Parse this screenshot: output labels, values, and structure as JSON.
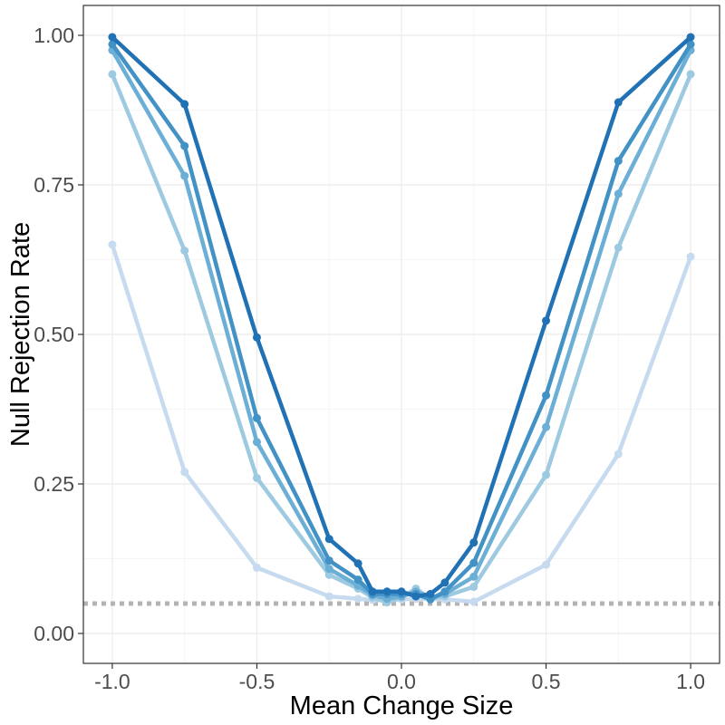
{
  "chart_data": {
    "type": "line",
    "title": "",
    "xlabel": "Mean Change Size",
    "ylabel": "Null Rejection Rate",
    "xlim": [
      -1.1,
      1.1
    ],
    "ylim": [
      -0.05,
      1.05
    ],
    "grid": true,
    "legend": "none",
    "x_ticks": [
      -1.0,
      -0.5,
      0.0,
      0.5,
      1.0
    ],
    "x_tick_labels": [
      "-1.0",
      "-0.5",
      "0.0",
      "0.5",
      "1.0"
    ],
    "y_ticks": [
      0.0,
      0.25,
      0.5,
      0.75,
      1.0
    ],
    "y_tick_labels": [
      "0.00",
      "0.25",
      "0.50",
      "0.75",
      "1.00"
    ],
    "reference_line": {
      "y": 0.05,
      "style": "dotted",
      "color": "#b3b3b3"
    },
    "x": [
      -1.0,
      -0.75,
      -0.5,
      -0.25,
      -0.15,
      -0.1,
      -0.05,
      0.0,
      0.05,
      0.1,
      0.15,
      0.25,
      0.5,
      0.75,
      1.0
    ],
    "series": [
      {
        "name": "series-1",
        "color": "#c6dbef",
        "values": [
          0.65,
          0.27,
          0.11,
          0.062,
          0.058,
          0.056,
          0.055,
          0.057,
          0.058,
          0.058,
          0.057,
          0.053,
          0.115,
          0.3,
          0.63
        ]
      },
      {
        "name": "series-2",
        "color": "#9ecae1",
        "values": [
          0.935,
          0.64,
          0.26,
          0.098,
          0.075,
          0.06,
          0.052,
          0.06,
          0.075,
          0.058,
          0.062,
          0.078,
          0.265,
          0.645,
          0.935
        ]
      },
      {
        "name": "series-3",
        "color": "#6baed6",
        "values": [
          0.975,
          0.765,
          0.32,
          0.108,
          0.08,
          0.064,
          0.058,
          0.062,
          0.07,
          0.06,
          0.066,
          0.095,
          0.345,
          0.735,
          0.975
        ]
      },
      {
        "name": "series-4",
        "color": "#4292c6",
        "values": [
          0.985,
          0.815,
          0.36,
          0.122,
          0.09,
          0.066,
          0.066,
          0.066,
          0.066,
          0.057,
          0.07,
          0.118,
          0.398,
          0.79,
          0.985
        ]
      },
      {
        "name": "series-5",
        "color": "#2171b5",
        "values": [
          0.997,
          0.885,
          0.495,
          0.158,
          0.117,
          0.07,
          0.07,
          0.07,
          0.062,
          0.066,
          0.085,
          0.152,
          0.523,
          0.888,
          0.997
        ]
      }
    ]
  }
}
